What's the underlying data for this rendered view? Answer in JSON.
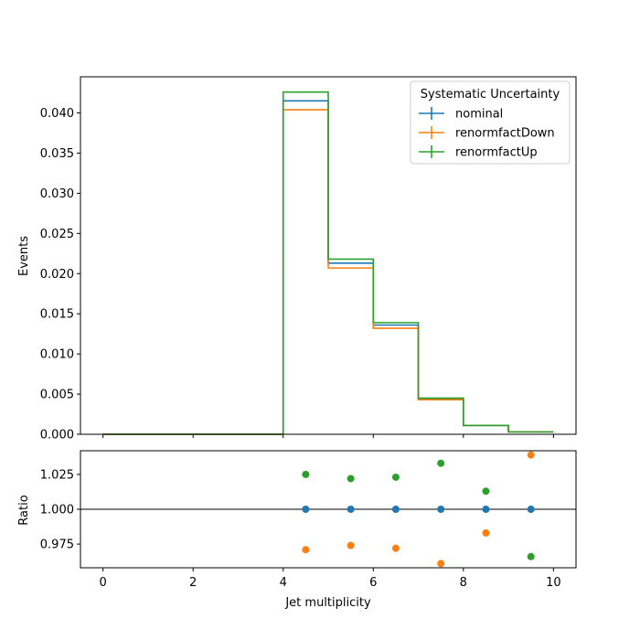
{
  "chart_data": [
    {
      "type": "step",
      "panel": "main",
      "ylabel": "Events",
      "ylim": [
        0.0,
        0.0445
      ],
      "yticks": [
        0.0,
        0.005,
        0.01,
        0.015,
        0.02,
        0.025,
        0.03,
        0.035,
        0.04
      ],
      "ytick_labels": [
        "0.000",
        "0.005",
        "0.010",
        "0.015",
        "0.020",
        "0.025",
        "0.030",
        "0.035",
        "0.040"
      ],
      "xlim": [
        -0.5,
        10.5
      ],
      "bin_edges": [
        0,
        1,
        2,
        3,
        4,
        5,
        6,
        7,
        8,
        9,
        10
      ],
      "legend": {
        "title": "Systematic Uncertainty",
        "placement": "top-right"
      },
      "series": [
        {
          "name": "nominal",
          "color": "#1f77b4",
          "values": [
            0,
            0,
            0,
            0,
            0.0415,
            0.0213,
            0.0136,
            0.0044,
            0.0011,
            0.0003
          ]
        },
        {
          "name": "renormfactDown",
          "color": "#ff7f0e",
          "values": [
            0,
            0,
            0,
            0,
            0.0404,
            0.0207,
            0.0132,
            0.0043,
            0.0011,
            0.0003
          ]
        },
        {
          "name": "renormfactUp",
          "color": "#2ca02c",
          "values": [
            0,
            0,
            0,
            0,
            0.0426,
            0.0218,
            0.0139,
            0.0045,
            0.0011,
            0.0003
          ]
        }
      ]
    },
    {
      "type": "scatter",
      "panel": "ratio",
      "xlabel": "Jet multiplicity",
      "ylabel": "Ratio",
      "ylim": [
        0.958,
        1.042
      ],
      "yticks": [
        0.975,
        1.0,
        1.025
      ],
      "ytick_labels": [
        "0.975",
        "1.000",
        "1.025"
      ],
      "xlim": [
        -0.5,
        10.5
      ],
      "xticks": [
        0,
        2,
        4,
        6,
        8,
        10
      ],
      "xtick_labels": [
        "0",
        "2",
        "4",
        "6",
        "8",
        "10"
      ],
      "reference_line": 1.0,
      "series": [
        {
          "name": "nominal",
          "color": "#1f77b4",
          "x": [
            4.5,
            5.5,
            6.5,
            7.5,
            8.5,
            9.5
          ],
          "y": [
            1.0,
            1.0,
            1.0,
            1.0,
            1.0,
            1.0
          ]
        },
        {
          "name": "renormfactDown",
          "color": "#ff7f0e",
          "x": [
            4.5,
            5.5,
            6.5,
            7.5,
            8.5,
            9.5
          ],
          "y": [
            0.971,
            0.974,
            0.972,
            0.961,
            0.983,
            1.039
          ]
        },
        {
          "name": "renormfactUp",
          "color": "#2ca02c",
          "x": [
            4.5,
            5.5,
            6.5,
            7.5,
            8.5,
            9.5
          ],
          "y": [
            1.025,
            1.022,
            1.023,
            1.033,
            1.013,
            0.966
          ]
        }
      ]
    }
  ]
}
